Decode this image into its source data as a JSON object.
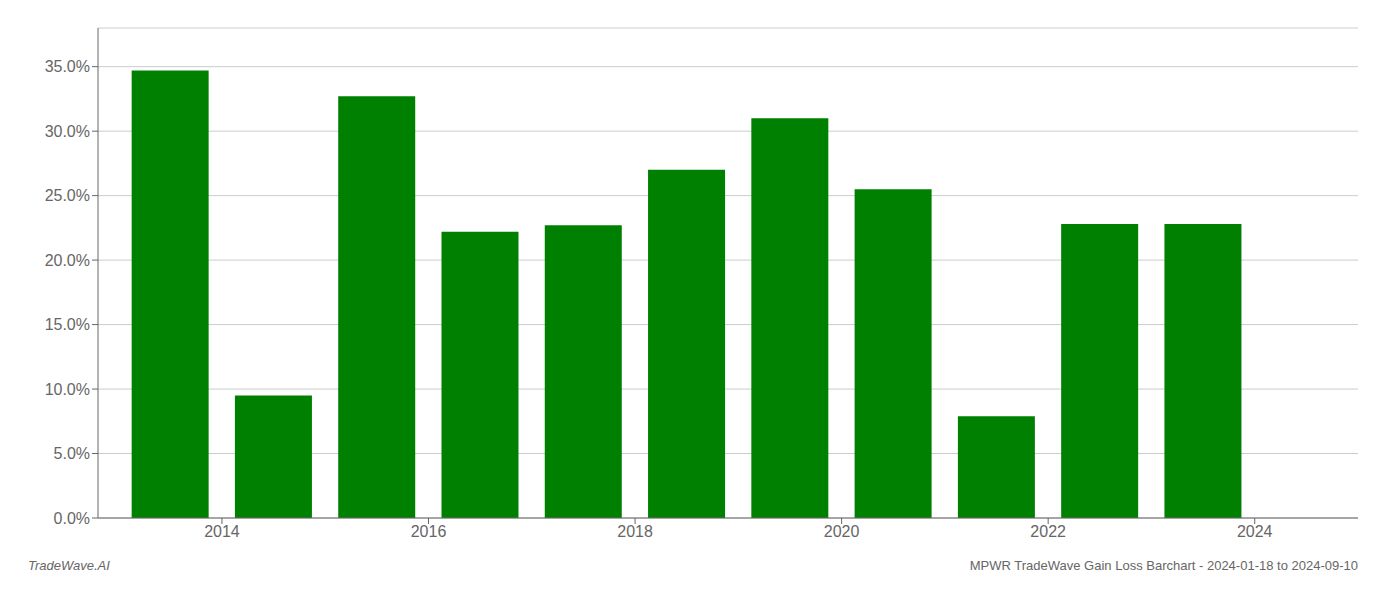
{
  "chart_data": {
    "type": "bar",
    "x": [
      2013,
      2014,
      2015,
      2016,
      2017,
      2018,
      2019,
      2020,
      2021,
      2022,
      2023
    ],
    "values": [
      0.347,
      0.095,
      0.327,
      0.222,
      0.227,
      0.27,
      0.31,
      0.255,
      0.079,
      0.228,
      0.228
    ],
    "color": "#008000",
    "xlim": [
      2012.3,
      2024.5
    ],
    "xticks": [
      {
        "value": 2013.5,
        "label": "2014"
      },
      {
        "value": 2015.5,
        "label": "2016"
      },
      {
        "value": 2017.5,
        "label": "2018"
      },
      {
        "value": 2019.5,
        "label": "2020"
      },
      {
        "value": 2021.5,
        "label": "2022"
      },
      {
        "value": 2023.5,
        "label": "2024"
      }
    ],
    "ylim": [
      0,
      0.38
    ],
    "yticks": [
      {
        "value": 0.0,
        "label": "0.0%"
      },
      {
        "value": 0.05,
        "label": "5.0%"
      },
      {
        "value": 0.1,
        "label": "10.0%"
      },
      {
        "value": 0.15,
        "label": "15.0%"
      },
      {
        "value": 0.2,
        "label": "20.0%"
      },
      {
        "value": 0.25,
        "label": "25.0%"
      },
      {
        "value": 0.3,
        "label": "30.0%"
      },
      {
        "value": 0.35,
        "label": "35.0%"
      }
    ],
    "grid": "y",
    "annotations": [
      "TradeWave.AI",
      "MPWR TradeWave Gain Loss Barchart - 2024-01-18 to 2024-09-10"
    ]
  }
}
